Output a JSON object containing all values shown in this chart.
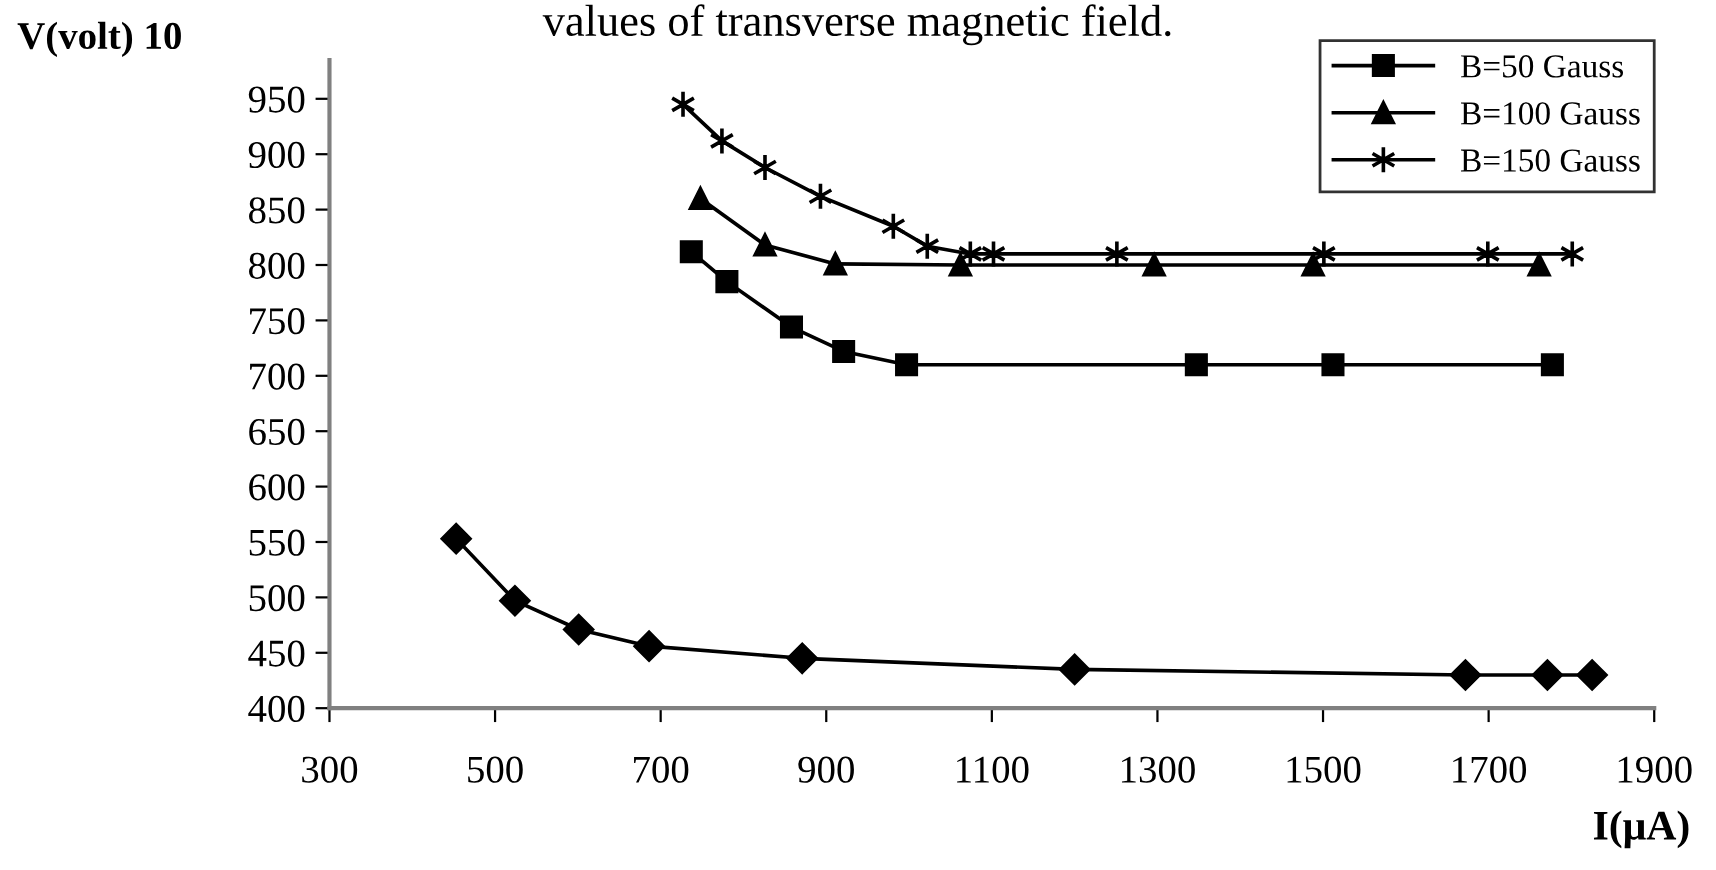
{
  "chart_data": {
    "type": "line",
    "title": "values of transverse magnetic field.",
    "xlabel": "I(μA)",
    "ylabel": "V(volt) 10",
    "xlim": [
      300,
      1900
    ],
    "xticks": [
      300,
      500,
      700,
      900,
      1100,
      1300,
      1500,
      1700,
      1900
    ],
    "ylim": [
      400,
      985
    ],
    "yticks": [
      400,
      450,
      500,
      550,
      600,
      650,
      700,
      750,
      800,
      850,
      900,
      950
    ],
    "grid": false,
    "legend": "top right",
    "line_style": "solid",
    "series": [
      {
        "color": "#000000",
        "marker": "diamond",
        "x": [
          453,
          524,
          601,
          686,
          871,
          1200,
          1672,
          1771,
          1825
        ],
        "values": [
          553,
          497,
          471,
          456,
          445,
          435,
          430,
          430,
          430
        ]
      },
      {
        "name": "B=50 Gauss",
        "color": "#000000",
        "marker": "square",
        "x": [
          737,
          780,
          858,
          921,
          997,
          1347,
          1512,
          1777
        ],
        "values": [
          812,
          785,
          744,
          722,
          710,
          710,
          710,
          710
        ]
      },
      {
        "name": "B=100 Gauss",
        "color": "#000000",
        "marker": "triangle",
        "x": [
          748,
          826,
          911,
          1062,
          1296,
          1488,
          1761
        ],
        "values": [
          860,
          818,
          801,
          800,
          800,
          800,
          800
        ]
      },
      {
        "name": "B=150 Gauss",
        "color": "#000000",
        "marker": "cross",
        "x": [
          727,
          774,
          826,
          893,
          981,
          1022,
          1074,
          1102,
          1251,
          1501,
          1699,
          1801
        ],
        "values": [
          945,
          912,
          888,
          862,
          835,
          817,
          810,
          810,
          810,
          810,
          810,
          810
        ]
      }
    ]
  }
}
